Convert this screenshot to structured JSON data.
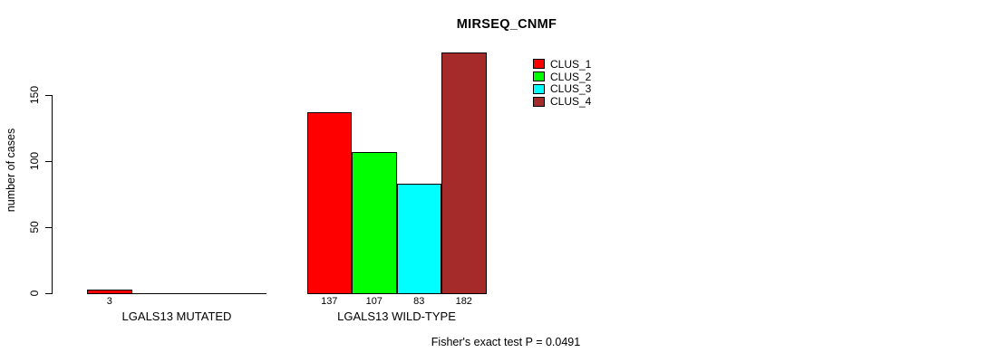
{
  "chart_data": {
    "type": "bar",
    "title": "MIRSEQ_CNMF",
    "ylabel": "number of cases",
    "xlabel": "",
    "yticks": [
      0,
      50,
      100,
      150
    ],
    "ylim": [
      0,
      182
    ],
    "grid": false,
    "legend_position": "top-right",
    "categories": [
      "LGALS13 MUTATED",
      "LGALS13 WILD-TYPE"
    ],
    "series": [
      {
        "name": "CLUS_1",
        "color": "#FF0000",
        "values": [
          3,
          137
        ]
      },
      {
        "name": "CLUS_2",
        "color": "#00FF00",
        "values": [
          0,
          107
        ]
      },
      {
        "name": "CLUS_3",
        "color": "#00FFFF",
        "values": [
          0,
          83
        ]
      },
      {
        "name": "CLUS_4",
        "color": "#A52A2A",
        "values": [
          0,
          182
        ]
      }
    ],
    "visible_bar_value_labels": [
      "3",
      "137",
      "107",
      "83",
      "182"
    ],
    "annotation": "Fisher's exact test P = 0.0491",
    "axis_color": "#000000",
    "text_color": "#000000",
    "background_color": "#FFFFFF"
  }
}
